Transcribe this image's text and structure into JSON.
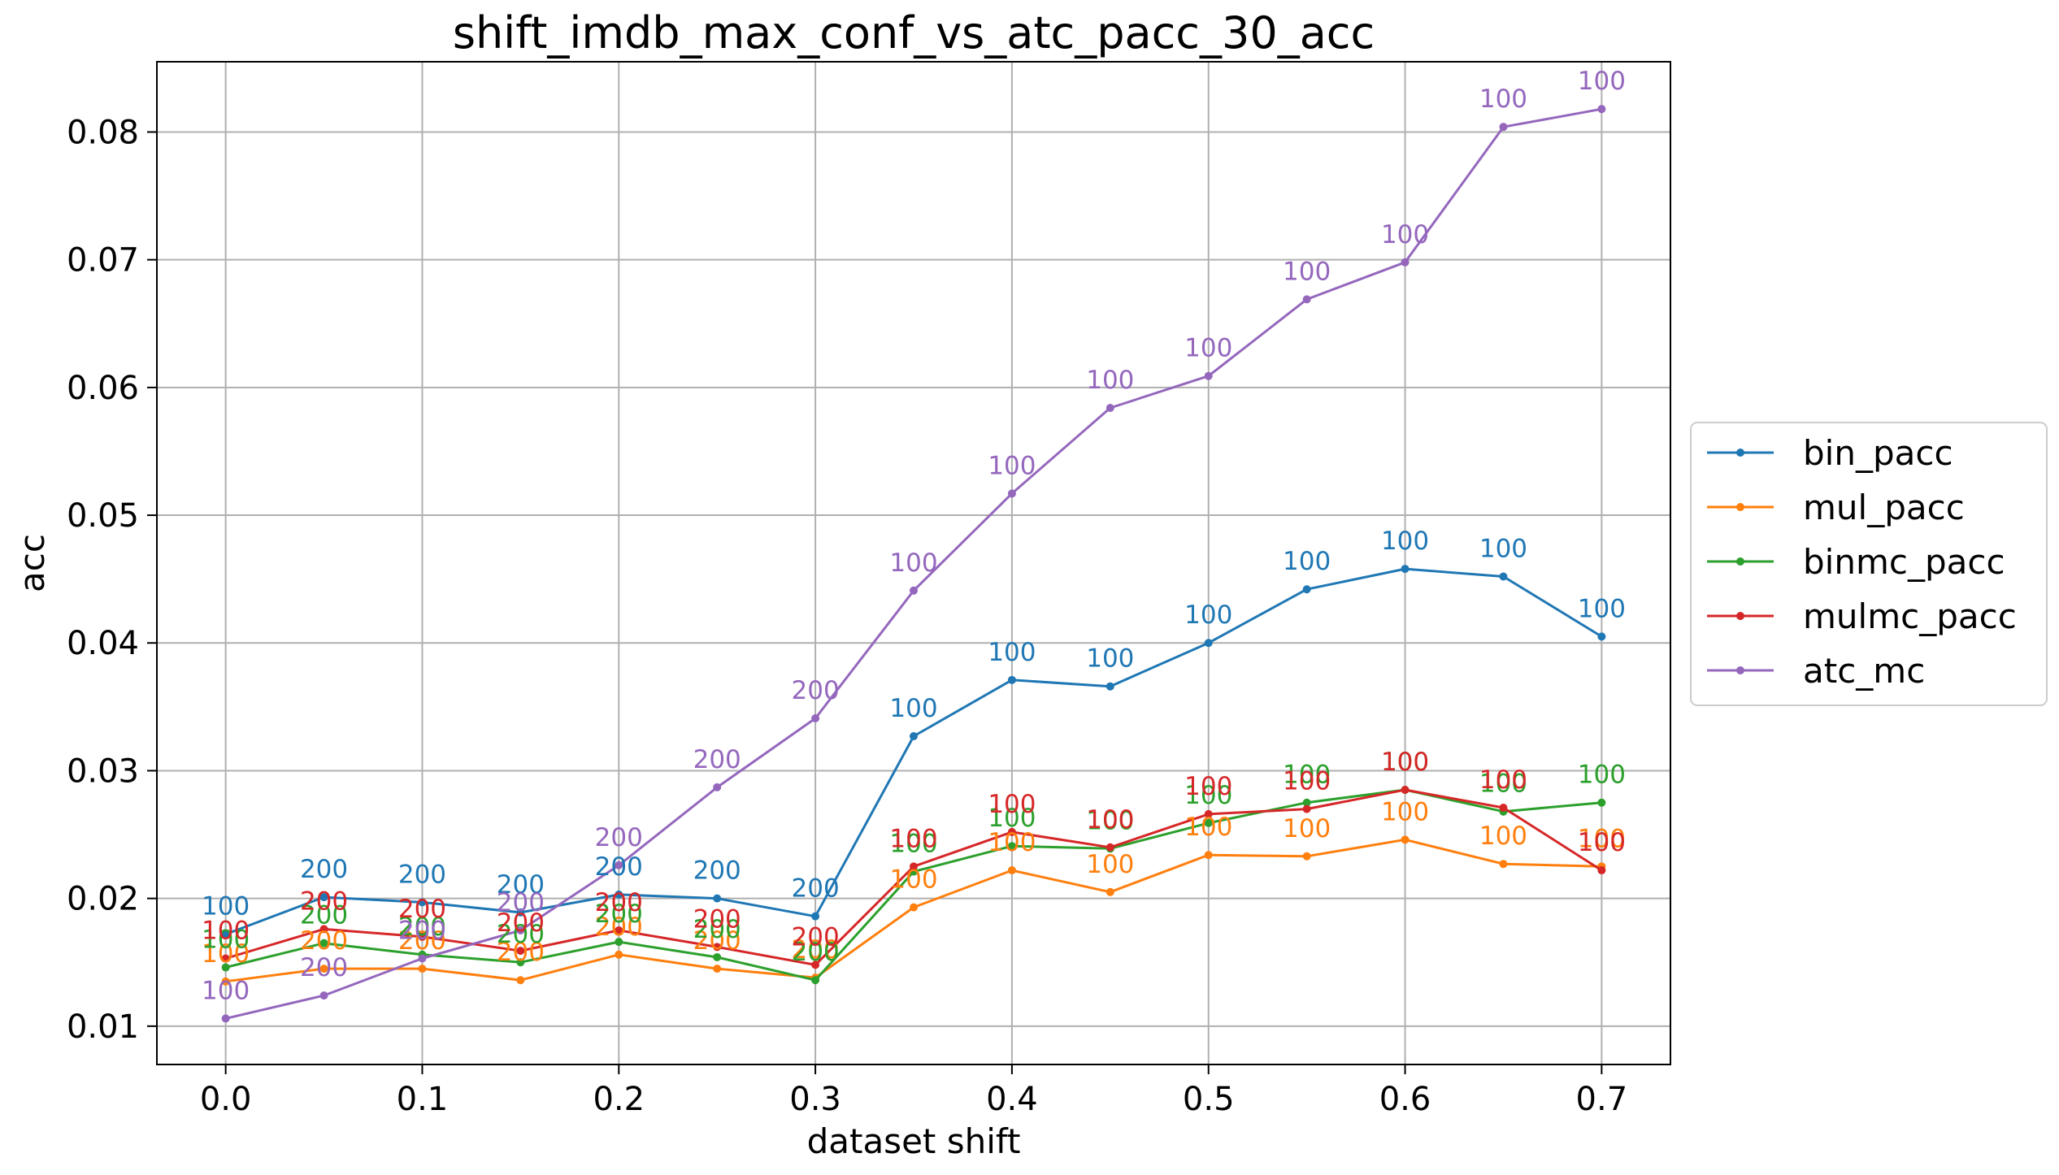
{
  "chart_data": {
    "type": "line",
    "title": "shift_imdb_max_conf_vs_atc_pacc_30_acc",
    "xlabel": "dataset shift",
    "ylabel": "acc",
    "xlim": [
      -0.035,
      0.735
    ],
    "ylim": [
      0.007,
      0.0855
    ],
    "xticks": [
      0.0,
      0.1,
      0.2,
      0.3,
      0.4,
      0.5,
      0.6,
      0.7
    ],
    "xtick_labels": [
      "0.0",
      "0.1",
      "0.2",
      "0.3",
      "0.4",
      "0.5",
      "0.6",
      "0.7"
    ],
    "yticks": [
      0.01,
      0.02,
      0.03,
      0.04,
      0.05,
      0.06,
      0.07,
      0.08
    ],
    "ytick_labels": [
      "0.01",
      "0.02",
      "0.03",
      "0.04",
      "0.05",
      "0.06",
      "0.07",
      "0.08"
    ],
    "grid": true,
    "legend_position": "outside-right",
    "x": [
      0.0,
      0.05,
      0.1,
      0.15,
      0.2,
      0.25,
      0.3,
      0.35,
      0.4,
      0.45,
      0.5,
      0.55,
      0.6,
      0.65,
      0.7
    ],
    "series": [
      {
        "name": "bin_pacc",
        "color": "#1f77b4",
        "values": [
          0.0172,
          0.0201,
          0.0197,
          0.0189,
          0.0203,
          0.02,
          0.0186,
          0.0327,
          0.0371,
          0.0366,
          0.04,
          0.0442,
          0.0458,
          0.0452,
          0.0405
        ],
        "labels": [
          "100",
          "200",
          "200",
          "200",
          "200",
          "200",
          "200",
          "100",
          "100",
          "100",
          "100",
          "100",
          "100",
          "100",
          "100"
        ]
      },
      {
        "name": "mul_pacc",
        "color": "#ff7f0e",
        "values": [
          0.0135,
          0.0145,
          0.0145,
          0.0136,
          0.0156,
          0.0145,
          0.0138,
          0.0193,
          0.0222,
          0.0205,
          0.0234,
          0.0233,
          0.0246,
          0.0227,
          0.0225
        ],
        "labels": [
          "100",
          "200",
          "200",
          "200",
          "200",
          "200",
          "200",
          "100",
          "100",
          "100",
          "100",
          "100",
          "100",
          "100",
          "100"
        ]
      },
      {
        "name": "binmc_pacc",
        "color": "#2ca02c",
        "values": [
          0.0146,
          0.0165,
          0.0156,
          0.015,
          0.0166,
          0.0154,
          0.0136,
          0.0221,
          0.0241,
          0.0239,
          0.0259,
          0.0275,
          0.0285,
          0.0268,
          0.0275
        ],
        "labels": [
          "100",
          "200",
          "200",
          "200",
          "200",
          "200",
          "200",
          "100",
          "100",
          "100",
          "100",
          "100",
          "100",
          "100",
          "100"
        ]
      },
      {
        "name": "mulmc_pacc",
        "color": "#d62728",
        "values": [
          0.0153,
          0.0176,
          0.017,
          0.0159,
          0.0175,
          0.0162,
          0.0148,
          0.0225,
          0.0252,
          0.024,
          0.0266,
          0.027,
          0.0285,
          0.0271,
          0.0222
        ],
        "labels": [
          "100",
          "200",
          "200",
          "200",
          "200",
          "200",
          "200",
          "100",
          "100",
          "100",
          "100",
          "100",
          "100",
          "100",
          "100"
        ]
      },
      {
        "name": "atc_mc",
        "color": "#9467bd",
        "values": [
          0.0106,
          0.0124,
          0.0153,
          0.0175,
          0.0226,
          0.0287,
          0.0341,
          0.0441,
          0.0517,
          0.0584,
          0.0609,
          0.0669,
          0.0698,
          0.0804,
          0.0818
        ],
        "labels": [
          "100",
          "200",
          "200",
          "200",
          "200",
          "200",
          "200",
          "100",
          "100",
          "100",
          "100",
          "100",
          "100",
          "100",
          "100"
        ]
      }
    ]
  }
}
